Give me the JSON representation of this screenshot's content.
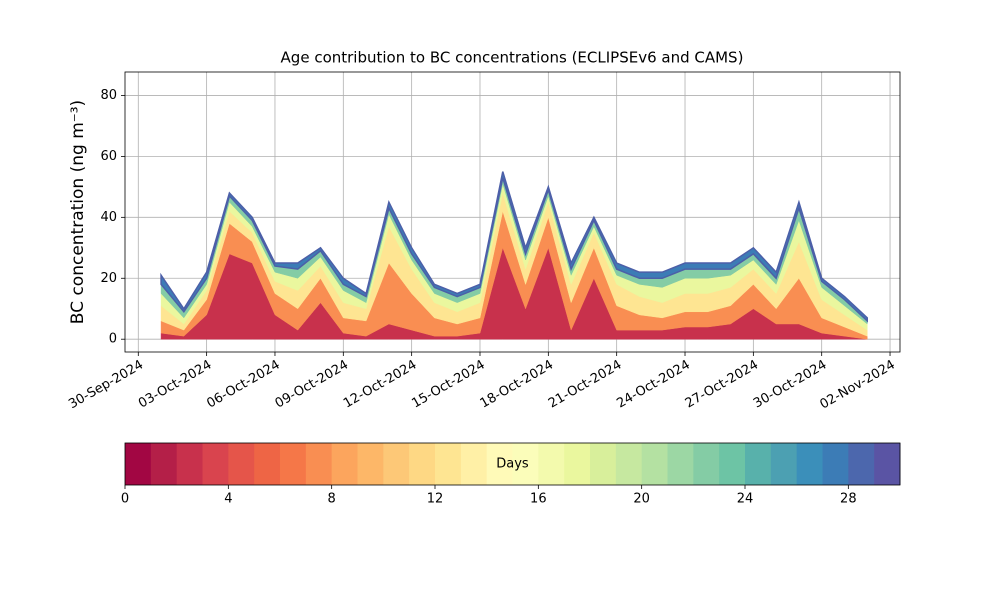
{
  "chart_data": {
    "type": "stackedarea",
    "title": "Age contribution to BC concentrations (ECLIPSEv6 and CAMS)",
    "y_label": "BC concentration (ng m⁻³)",
    "x": [
      "2024-10-01",
      "2024-10-02",
      "2024-10-03",
      "2024-10-04",
      "2024-10-05",
      "2024-10-06",
      "2024-10-07",
      "2024-10-08",
      "2024-10-09",
      "2024-10-10",
      "2024-10-11",
      "2024-10-12",
      "2024-10-13",
      "2024-10-14",
      "2024-10-15",
      "2024-10-16",
      "2024-10-17",
      "2024-10-18",
      "2024-10-19",
      "2024-10-20",
      "2024-10-21",
      "2024-10-22",
      "2024-10-23",
      "2024-10-24",
      "2024-10-25",
      "2024-10-26",
      "2024-10-27",
      "2024-10-28",
      "2024-10-29",
      "2024-10-30",
      "2024-10-31",
      "2024-11-01"
    ],
    "series": [
      {
        "color": "#c8314c",
        "values": [
          2,
          1,
          8,
          28,
          25,
          8,
          3,
          12,
          2,
          1,
          5,
          3,
          1,
          1,
          2,
          30,
          10,
          30,
          3,
          20,
          3,
          3,
          3,
          4,
          4,
          5,
          10,
          5,
          5,
          2,
          1,
          0
        ]
      },
      {
        "color": "#f98e52",
        "values": [
          4,
          2,
          5,
          10,
          7,
          7,
          7,
          8,
          5,
          5,
          20,
          12,
          6,
          4,
          5,
          12,
          8,
          10,
          9,
          10,
          8,
          5,
          4,
          5,
          5,
          6,
          8,
          5,
          15,
          5,
          3,
          1
        ]
      },
      {
        "color": "#fee592",
        "values": [
          5,
          2,
          3,
          4,
          3,
          4,
          6,
          4,
          5,
          4,
          12,
          8,
          5,
          4,
          5,
          6,
          5,
          5,
          6,
          5,
          7,
          6,
          5,
          6,
          6,
          6,
          5,
          5,
          12,
          6,
          4,
          2
        ]
      },
      {
        "color": "#eaf79e",
        "values": [
          4,
          2,
          2,
          3,
          2,
          3,
          4,
          3,
          4,
          2,
          4,
          3,
          3,
          3,
          3,
          3,
          3,
          2,
          3,
          2,
          3,
          4,
          5,
          5,
          5,
          4,
          3,
          3,
          7,
          4,
          3,
          2
        ]
      },
      {
        "color": "#84cca5",
        "values": [
          3,
          2,
          2,
          2,
          2,
          2,
          3,
          2,
          2,
          2,
          2,
          2,
          2,
          2,
          2,
          2,
          2,
          2,
          2,
          2,
          2,
          2,
          3,
          3,
          3,
          2,
          2,
          2,
          4,
          2,
          2,
          1
        ]
      },
      {
        "color": "#3c7cb6",
        "values": [
          3,
          1,
          2,
          1,
          1,
          1,
          2,
          1,
          2,
          1,
          2,
          2,
          1,
          1,
          1,
          2,
          2,
          1,
          2,
          1,
          2,
          2,
          2,
          2,
          2,
          2,
          2,
          2,
          2,
          1,
          1,
          1
        ]
      }
    ],
    "xlim": [
      "2024-09-29T10:00Z",
      "2024-11-02T10:30Z"
    ],
    "xticks": [
      {
        "value": "2024-09-30",
        "label": "30-Sep-2024"
      },
      {
        "value": "2024-10-03",
        "label": "03-Oct-2024"
      },
      {
        "value": "2024-10-06",
        "label": "06-Oct-2024"
      },
      {
        "value": "2024-10-09",
        "label": "09-Oct-2024"
      },
      {
        "value": "2024-10-12",
        "label": "12-Oct-2024"
      },
      {
        "value": "2024-10-15",
        "label": "15-Oct-2024"
      },
      {
        "value": "2024-10-18",
        "label": "18-Oct-2024"
      },
      {
        "value": "2024-10-21",
        "label": "21-Oct-2024"
      },
      {
        "value": "2024-10-24",
        "label": "24-Oct-2024"
      },
      {
        "value": "2024-10-27",
        "label": "27-Oct-2024"
      },
      {
        "value": "2024-10-30",
        "label": "30-Oct-2024"
      },
      {
        "value": "2024-11-02",
        "label": "02-Nov-2024"
      }
    ],
    "ylim": [
      -4.2,
      87.7
    ],
    "yticks": [
      0,
      20,
      40,
      60,
      80
    ],
    "grid": true,
    "colorbar": {
      "label": "Days",
      "lim": [
        0,
        30
      ],
      "ticks": [
        0,
        4,
        8,
        12,
        16,
        20,
        24,
        28
      ],
      "colors": [
        "#a20643",
        "#b41f48",
        "#c8314c",
        "#d9444e",
        "#e5554a",
        "#ee6545",
        "#f57748",
        "#f98e52",
        "#fca55d",
        "#fdb768",
        "#fdc877",
        "#fed884",
        "#fee592",
        "#fff0a6",
        "#fffab8",
        "#fbfdba",
        "#f3faad",
        "#eaf79e",
        "#d8ef9b",
        "#c6e8a0",
        "#b4e1a2",
        "#9cd7a4",
        "#84cca5",
        "#6dc4a5",
        "#58b1ab",
        "#4ca0b2",
        "#3b8fba",
        "#3c7cb6",
        "#4c67ad",
        "#5a54a4"
      ]
    }
  }
}
